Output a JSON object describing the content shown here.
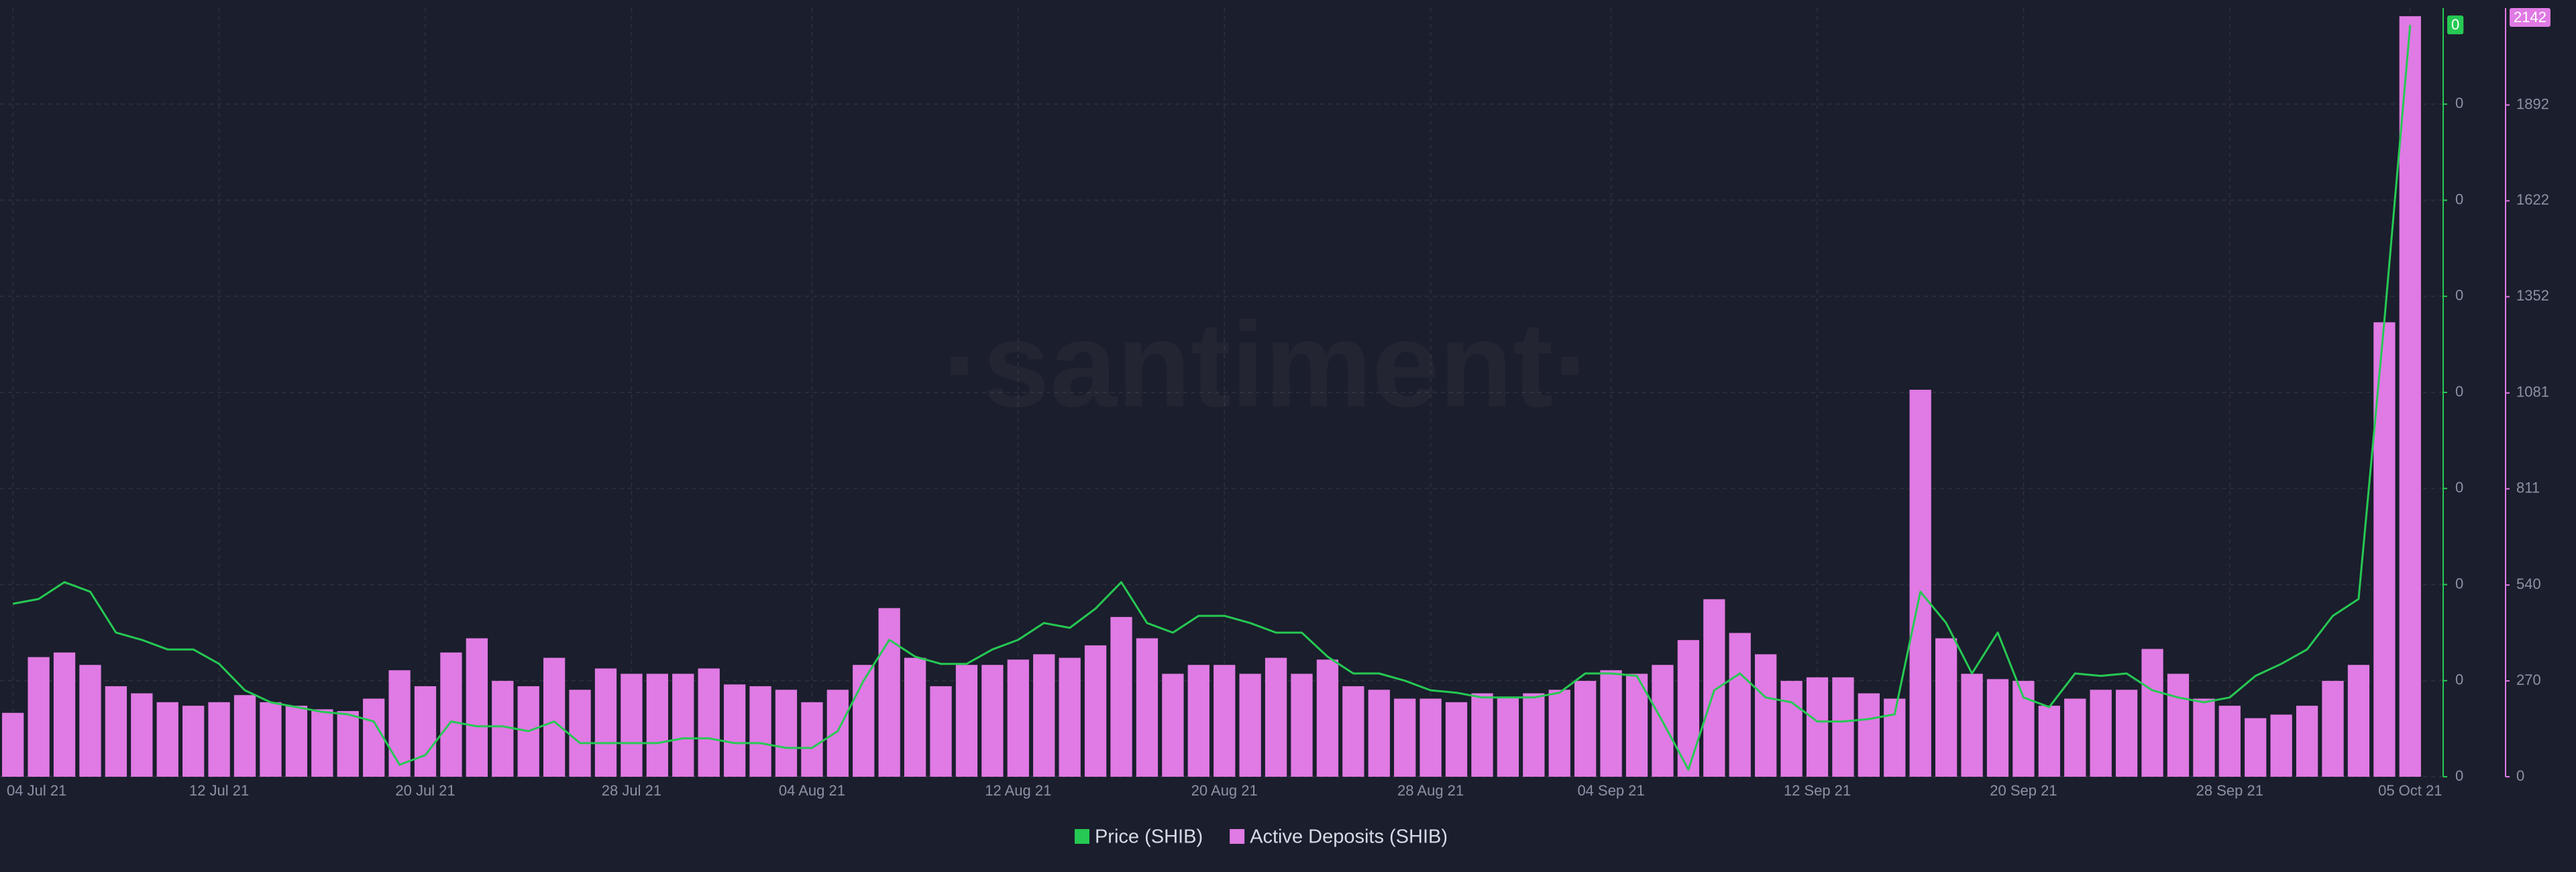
{
  "chart_data": {
    "type": "bar",
    "watermark": "·santiment·",
    "x": [
      "04 Jul 21",
      "05 Jul 21",
      "06 Jul 21",
      "07 Jul 21",
      "08 Jul 21",
      "09 Jul 21",
      "10 Jul 21",
      "11 Jul 21",
      "12 Jul 21",
      "13 Jul 21",
      "14 Jul 21",
      "15 Jul 21",
      "16 Jul 21",
      "17 Jul 21",
      "18 Jul 21",
      "19 Jul 21",
      "20 Jul 21",
      "21 Jul 21",
      "22 Jul 21",
      "23 Jul 21",
      "24 Jul 21",
      "25 Jul 21",
      "26 Jul 21",
      "27 Jul 21",
      "28 Jul 21",
      "29 Jul 21",
      "30 Jul 21",
      "31 Jul 21",
      "01 Aug 21",
      "02 Aug 21",
      "03 Aug 21",
      "04 Aug 21",
      "05 Aug 21",
      "06 Aug 21",
      "07 Aug 21",
      "08 Aug 21",
      "09 Aug 21",
      "10 Aug 21",
      "11 Aug 21",
      "12 Aug 21",
      "13 Aug 21",
      "14 Aug 21",
      "15 Aug 21",
      "16 Aug 21",
      "17 Aug 21",
      "18 Aug 21",
      "19 Aug 21",
      "20 Aug 21",
      "21 Aug 21",
      "22 Aug 21",
      "23 Aug 21",
      "24 Aug 21",
      "25 Aug 21",
      "26 Aug 21",
      "27 Aug 21",
      "28 Aug 21",
      "29 Aug 21",
      "30 Aug 21",
      "31 Aug 21",
      "01 Sep 21",
      "02 Sep 21",
      "03 Sep 21",
      "04 Sep 21",
      "05 Sep 21",
      "06 Sep 21",
      "07 Sep 21",
      "08 Sep 21",
      "09 Sep 21",
      "10 Sep 21",
      "11 Sep 21",
      "12 Sep 21",
      "13 Sep 21",
      "14 Sep 21",
      "15 Sep 21",
      "16 Sep 21",
      "17 Sep 21",
      "18 Sep 21",
      "19 Sep 21",
      "20 Sep 21",
      "21 Sep 21",
      "22 Sep 21",
      "23 Sep 21",
      "24 Sep 21",
      "25 Sep 21",
      "26 Sep 21",
      "27 Sep 21",
      "28 Sep 21",
      "29 Sep 21",
      "30 Sep 21",
      "01 Oct 21",
      "02 Oct 21",
      "03 Oct 21",
      "04 Oct 21",
      "05 Oct 21"
    ],
    "xticks": [
      "04 Jul 21",
      "12 Jul 21",
      "20 Jul 21",
      "28 Jul 21",
      "04 Aug 21",
      "12 Aug 21",
      "20 Aug 21",
      "28 Aug 21",
      "04 Sep 21",
      "12 Sep 21",
      "20 Sep 21",
      "28 Sep 21",
      "05 Oct 21"
    ],
    "ylim": [
      0,
      3.2e-05
    ],
    "yticks": [
      0,
      {
        "value": 4e-06,
        "label": "0"
      },
      {
        "value": 8e-06,
        "label": "0"
      },
      {
        "value": 1.2e-05,
        "label": "0"
      },
      {
        "value": 1.6e-05,
        "label": "0"
      },
      {
        "value": 2e-05,
        "label": "0"
      },
      {
        "value": 2.4e-05,
        "label": "0"
      },
      {
        "value": 2.8e-05,
        "label": "0"
      }
    ],
    "y2lim": [
      0,
      2165
    ],
    "y2ticks": [
      0,
      270,
      540,
      811,
      1081,
      1352,
      1622,
      1892
    ],
    "grid": true,
    "legend": "bottom",
    "series": [
      {
        "name": "Price (SHIB)",
        "type": "line",
        "color": "#26c953",
        "values": [
          7.2e-06,
          7.4e-06,
          8.1e-06,
          7.7e-06,
          6e-06,
          5.7e-06,
          5.3e-06,
          5.3e-06,
          4.7e-06,
          3.6e-06,
          3.1e-06,
          2.9e-06,
          2.7e-06,
          2.6e-06,
          2.3e-06,
          5e-07,
          9e-07,
          2.3e-06,
          2.1e-06,
          2.1e-06,
          1.9e-06,
          2.3e-06,
          1.4e-06,
          1.4e-06,
          1.4e-06,
          1.4e-06,
          1.6e-06,
          1.6e-06,
          1.4e-06,
          1.4e-06,
          1.2e-06,
          1.2e-06,
          1.9e-06,
          4e-06,
          5.7e-06,
          5e-06,
          4.7e-06,
          4.7e-06,
          5.3e-06,
          5.7e-06,
          6.4e-06,
          6.2e-06,
          7e-06,
          8.1e-06,
          6.4e-06,
          6e-06,
          6.7e-06,
          6.7e-06,
          6.4e-06,
          6e-06,
          6e-06,
          5e-06,
          4.3e-06,
          4.3e-06,
          4e-06,
          3.6e-06,
          3.5e-06,
          3.3e-06,
          3.3e-06,
          3.3e-06,
          3.5e-06,
          4.3e-06,
          4.3e-06,
          4.2e-06,
          2.3e-06,
          3e-07,
          3.6e-06,
          4.3e-06,
          3.3e-06,
          3.1e-06,
          2.3e-06,
          2.3e-06,
          2.4e-06,
          2.6e-06,
          7.7e-06,
          6.4e-06,
          4.3e-06,
          6e-06,
          3.3e-06,
          2.9e-06,
          4.3e-06,
          4.2e-06,
          4.3e-06,
          3.6e-06,
          3.3e-06,
          3.1e-06,
          3.3e-06,
          4.2e-06,
          4.7e-06,
          5.3e-06,
          6.7e-06,
          7.4e-06,
          1.9e-05,
          3.13e-05
        ],
        "value_labels": [
          null,
          null,
          null,
          null,
          null,
          null,
          null,
          null,
          null,
          null,
          null,
          null,
          null,
          null,
          null,
          null,
          null,
          null,
          null,
          null,
          null,
          null,
          null,
          null,
          null,
          null,
          null,
          null,
          null,
          null,
          null,
          null,
          null,
          null,
          null,
          null,
          null,
          null,
          null,
          null,
          null,
          null,
          null,
          null,
          null,
          null,
          null,
          null,
          null,
          null,
          null,
          null,
          null,
          null,
          null,
          null,
          null,
          null,
          null,
          null,
          null,
          null,
          null,
          null,
          null,
          null,
          null,
          null,
          null,
          null,
          null,
          null,
          null,
          null,
          null,
          null,
          null,
          null,
          null,
          null,
          null,
          null,
          null,
          null,
          null,
          null,
          null,
          null,
          null,
          null,
          null,
          null,
          null,
          "0"
        ]
      },
      {
        "name": "Active Deposits (SHIB)",
        "type": "bar",
        "axis": "y2",
        "color": "#e07ae4",
        "values": [
          180,
          337,
          350,
          315,
          255,
          235,
          210,
          200,
          210,
          230,
          210,
          200,
          190,
          185,
          220,
          300,
          255,
          350,
          390,
          270,
          255,
          335,
          245,
          305,
          290,
          290,
          290,
          305,
          260,
          255,
          245,
          210,
          245,
          315,
          475,
          335,
          255,
          315,
          315,
          330,
          345,
          335,
          370,
          450,
          390,
          290,
          315,
          315,
          290,
          335,
          290,
          330,
          255,
          245,
          220,
          220,
          210,
          235,
          225,
          235,
          245,
          270,
          300,
          290,
          315,
          385,
          500,
          405,
          345,
          270,
          280,
          280,
          235,
          220,
          1090,
          390,
          290,
          275,
          270,
          200,
          220,
          245,
          245,
          360,
          290,
          220,
          200,
          165,
          175,
          200,
          270,
          315,
          1280,
          2142
        ]
      }
    ]
  }
}
